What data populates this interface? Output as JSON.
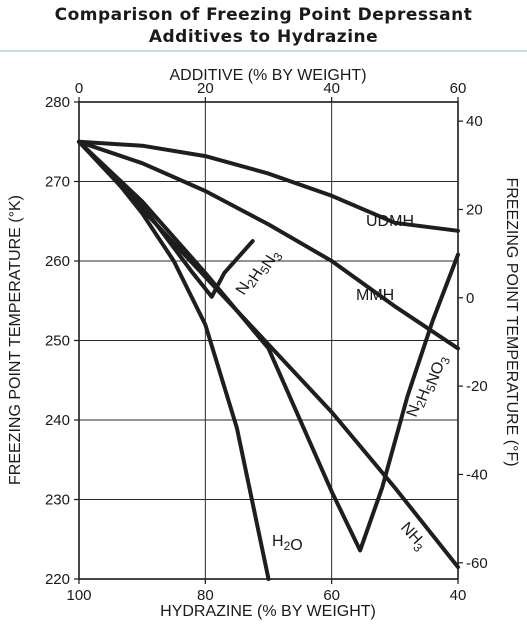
{
  "title_line1": "Comparison of Freezing Point Depressant",
  "title_line2": "Additives to Hydrazine",
  "chart_data": {
    "type": "line",
    "top_xlabel": "ADDITIVE (% BY WEIGHT)",
    "bottom_xlabel": "HYDRAZINE (% BY WEIGHT)",
    "ylabel_left": "FREEZING POINT TEMPERATURE (°K)",
    "ylabel_right": "FREEZING POINT TEMPERATURE (°F)",
    "xlim": [
      0,
      60
    ],
    "ylim": [
      220,
      280
    ],
    "top_ticks": [
      "0",
      "20",
      "40",
      "60"
    ],
    "bottom_ticks": [
      "100",
      "80",
      "60",
      "40"
    ],
    "left_ticks": [
      "220",
      "230",
      "240",
      "250",
      "260",
      "270",
      "280"
    ],
    "right_ticks": [
      "-60",
      "-40",
      "-20",
      "0",
      "20",
      "40"
    ],
    "grid": true,
    "series": [
      {
        "name": "UDMH",
        "label_parts": [
          [
            "UDMH",
            ""
          ]
        ],
        "x": [
          0,
          10,
          20,
          30,
          40,
          50,
          60
        ],
        "y": [
          275,
          274.5,
          273.2,
          271,
          268.2,
          264.8,
          263.8
        ]
      },
      {
        "name": "MMH",
        "label_parts": [
          [
            "MMH",
            ""
          ]
        ],
        "x": [
          0,
          10,
          20,
          30,
          40,
          50,
          60
        ],
        "y": [
          275,
          272.3,
          268.8,
          264.6,
          260,
          254.3,
          249
        ]
      },
      {
        "name": "N2H5N3",
        "label_parts": [
          [
            "N",
            ""
          ],
          [
            "2",
            "sub"
          ],
          [
            "H",
            ""
          ],
          [
            "5",
            "sub"
          ],
          [
            "N",
            ""
          ],
          [
            "3",
            "sub"
          ]
        ],
        "x": [
          0,
          10,
          18,
          21,
          23,
          27.5
        ],
        "y": [
          275,
          267,
          258.5,
          255.5,
          258.5,
          262.5
        ]
      },
      {
        "name": "N2H5NO3",
        "label_parts": [
          [
            "N",
            ""
          ],
          [
            "2",
            "sub"
          ],
          [
            "H",
            ""
          ],
          [
            "5",
            "sub"
          ],
          [
            "NO",
            ""
          ],
          [
            "3",
            "sub"
          ]
        ],
        "x": [
          0,
          10,
          20,
          30,
          40,
          44.5,
          48,
          52,
          56,
          60
        ],
        "y": [
          275,
          267.5,
          258.5,
          249,
          231,
          223.6,
          231.5,
          243,
          252.5,
          260.8
        ]
      },
      {
        "name": "NH3",
        "label_parts": [
          [
            "NH",
            ""
          ],
          [
            "3",
            "sub"
          ]
        ],
        "x": [
          0,
          10,
          20,
          30,
          40,
          50,
          60
        ],
        "y": [
          275,
          266.5,
          258,
          249.5,
          241,
          231.5,
          221.5
        ]
      },
      {
        "name": "H2O",
        "label_parts": [
          [
            "H",
            ""
          ],
          [
            "2",
            "sub"
          ],
          [
            "O",
            ""
          ]
        ],
        "x": [
          0,
          5,
          10,
          15,
          20,
          25,
          30
        ],
        "y": [
          275,
          271,
          266,
          260,
          252,
          239,
          220
        ]
      }
    ]
  }
}
